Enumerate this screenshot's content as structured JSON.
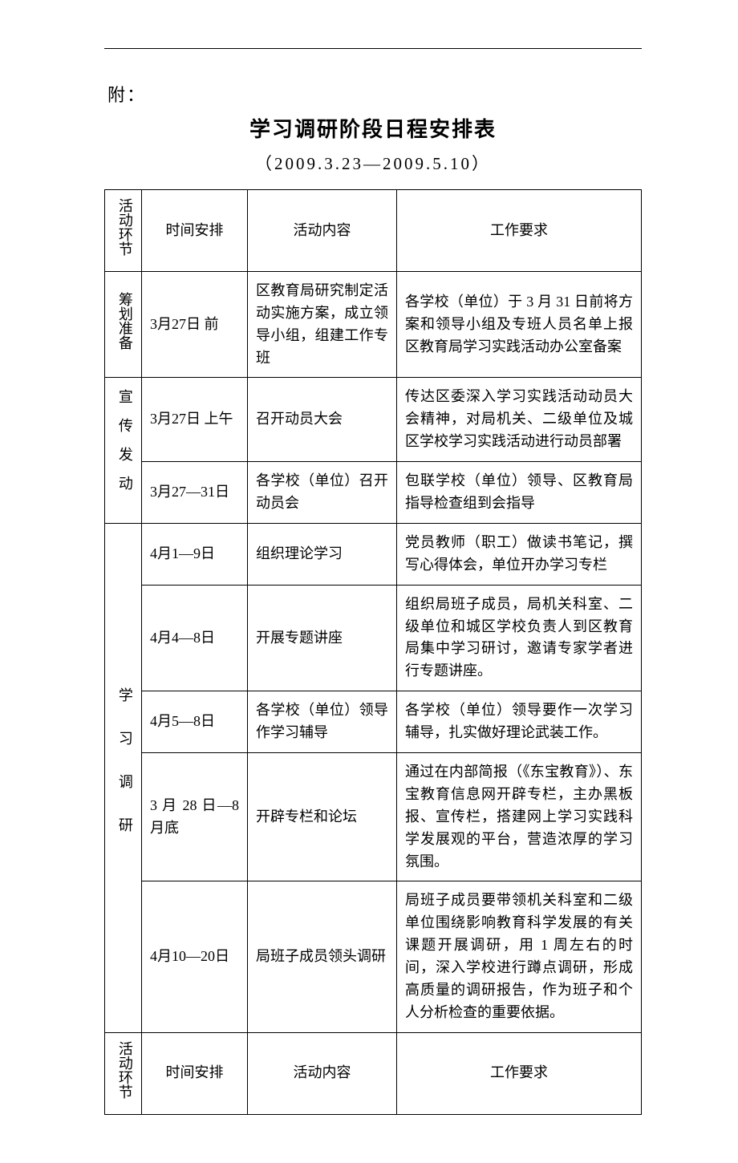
{
  "page": {
    "attach_label": "附：",
    "title": "学习调研阶段日程安排表",
    "subtitle": "（2009.3.23—2009.5.10）"
  },
  "columns": {
    "stage": "活动环节",
    "time": "时间安排",
    "activity": "活动内容",
    "requirement": "工作要求"
  },
  "rows": [
    {
      "stage": "筹划准备",
      "time": "3月27日 前",
      "activity": "区教育局研究制定活动实施方案，成立领导小组，组建工作专班",
      "requirement": "各学校（单位）于 3 月 31 日前将方案和领导小组及专班人员名单上报区教育局学习实践活动办公室备案"
    },
    {
      "stage": "宣传发动",
      "time": "3月27日 上午",
      "activity": "召开动员大会",
      "requirement": "传达区委深入学习实践活动动员大会精神，对局机关、二级单位及城区学校学习实践活动进行动员部署"
    },
    {
      "time": "3月27—31日",
      "activity": "各学校（单位）召开动员会",
      "requirement": "包联学校（单位）领导、区教育局指导检查组到会指导"
    },
    {
      "stage": "学习调研",
      "time": "4月1—9日",
      "activity": "组织理论学习",
      "requirement": "党员教师（职工）做读书笔记，撰写心得体会，单位开办学习专栏"
    },
    {
      "time": "4月4—8日",
      "activity": "开展专题讲座",
      "requirement": "组织局班子成员，局机关科室、二级单位和城区学校负责人到区教育局集中学习研讨，邀请专家学者进行专题讲座。"
    },
    {
      "time": "4月5—8日",
      "activity": "各学校（单位）领导作学习辅导",
      "requirement": "各学校（单位）领导要作一次学习辅导，扎实做好理论武装工作。"
    },
    {
      "time": "3 月 28 日—8月底",
      "activity": "开辟专栏和论坛",
      "requirement": "通过在内部简报（《东宝教育》）、东宝教育信息网开辟专栏，主办黑板报、宣传栏，搭建网上学习实践科学发展观的平台，营造浓厚的学习氛围。"
    },
    {
      "time": "4月10—20日",
      "activity": "局班子成员领头调研",
      "requirement": "局班子成员要带领机关科室和二级单位围绕影响教育科学发展的有关课题开展调研，用 1 周左右的时间，深入学校进行蹲点调研，形成高质量的调研报告，作为班子和个人分析检查的重要依据。"
    }
  ]
}
